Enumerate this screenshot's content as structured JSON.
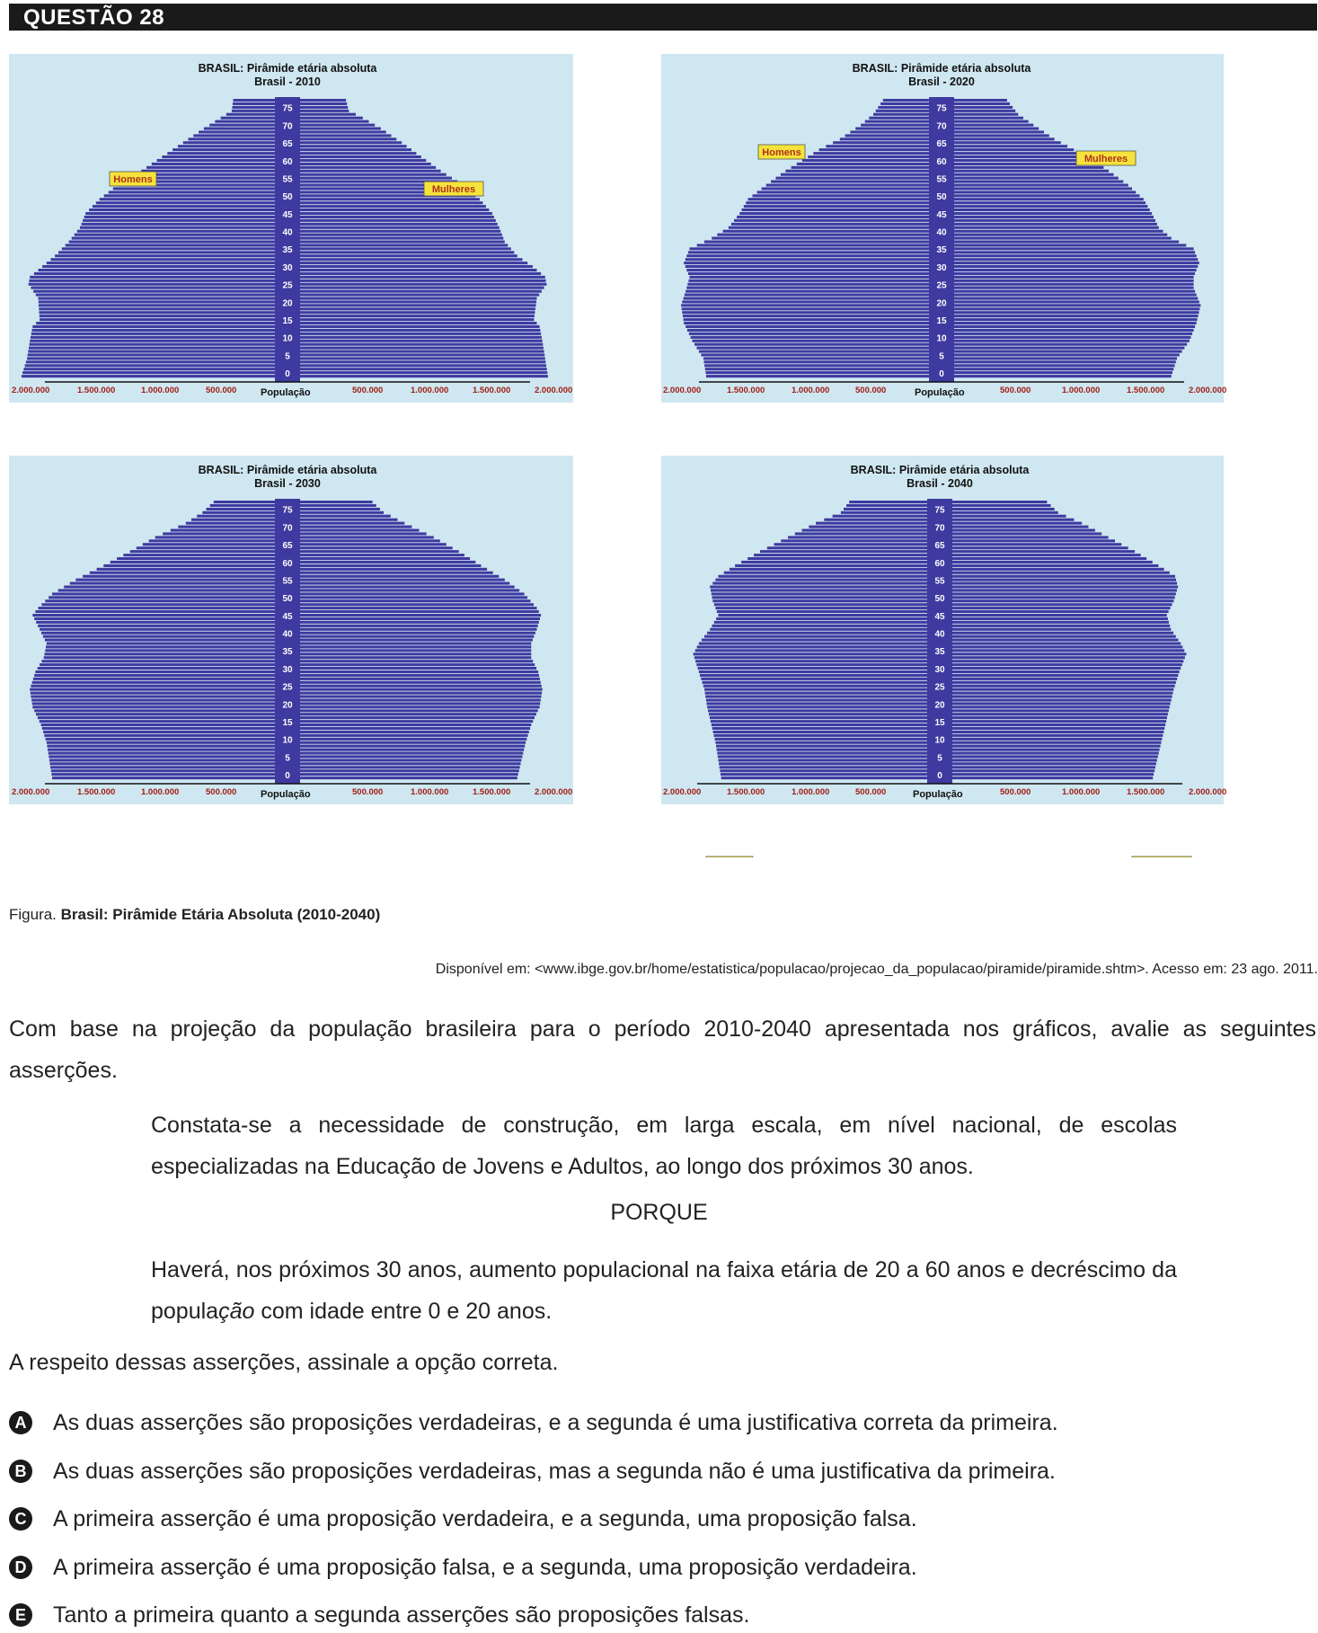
{
  "header": {
    "title": "QUESTÃO 28"
  },
  "colors": {
    "bg": "#cfe7f1",
    "bar": "#3f3aa0",
    "label_bg": "#f5e33b",
    "label_text": "#b0301e",
    "axis_text": "#a01e14"
  },
  "chart_data": [
    {
      "type": "population-pyramid",
      "title": "BRASIL: Pirâmide etária absoluta",
      "subtitle": "Brasil - 2010",
      "xlabel": "População",
      "left_label": "Homens",
      "right_label": "Mulheres",
      "x_ticks": [
        "2.000.000",
        "1.500.000",
        "1.000.000",
        "500.000",
        "500.000",
        "1.000.000",
        "1.500.000",
        "2.000.000"
      ],
      "age_ticks": [
        "0",
        "5",
        "10",
        "15",
        "20",
        "25",
        "30",
        "35",
        "40",
        "45",
        "50",
        "55",
        "60",
        "65",
        "70",
        "75"
      ],
      "xlim": [
        0,
        2000000
      ],
      "male_profile": [
        [
          0,
          1820000
        ],
        [
          5,
          1780000
        ],
        [
          10,
          1760000
        ],
        [
          14,
          1740000
        ],
        [
          16,
          1690000
        ],
        [
          22,
          1700000
        ],
        [
          26,
          1770000
        ],
        [
          28,
          1760000
        ],
        [
          31,
          1670000
        ],
        [
          34,
          1580000
        ],
        [
          38,
          1480000
        ],
        [
          42,
          1400000
        ],
        [
          46,
          1360000
        ],
        [
          50,
          1260000
        ],
        [
          54,
          1130000
        ],
        [
          58,
          960000
        ],
        [
          62,
          810000
        ],
        [
          66,
          660000
        ],
        [
          70,
          510000
        ],
        [
          73,
          390000
        ],
        [
          75,
          310000
        ],
        [
          78,
          300000
        ]
      ],
      "female_profile": [
        [
          0,
          1780000
        ],
        [
          5,
          1760000
        ],
        [
          10,
          1740000
        ],
        [
          14,
          1720000
        ],
        [
          16,
          1680000
        ],
        [
          22,
          1700000
        ],
        [
          26,
          1770000
        ],
        [
          28,
          1760000
        ],
        [
          31,
          1670000
        ],
        [
          34,
          1560000
        ],
        [
          38,
          1470000
        ],
        [
          42,
          1430000
        ],
        [
          46,
          1380000
        ],
        [
          50,
          1290000
        ],
        [
          54,
          1170000
        ],
        [
          58,
          1010000
        ],
        [
          62,
          870000
        ],
        [
          66,
          730000
        ],
        [
          70,
          580000
        ],
        [
          73,
          450000
        ],
        [
          75,
          350000
        ],
        [
          78,
          330000
        ]
      ]
    },
    {
      "type": "population-pyramid",
      "title": "BRASIL: Pirâmide etária absoluta",
      "subtitle": "Brasil - 2020",
      "xlabel": "População",
      "left_label": "Homens",
      "right_label": "Mulheres",
      "x_ticks": [
        "2.000.000",
        "1.500.000",
        "1.000.000",
        "500.000",
        "500.000",
        "1.000.000",
        "1.500.000",
        "2.000.000"
      ],
      "age_ticks": [
        "0",
        "5",
        "10",
        "15",
        "20",
        "25",
        "30",
        "35",
        "40",
        "45",
        "50",
        "55",
        "60",
        "65",
        "70",
        "75"
      ],
      "xlim": [
        0,
        2000000
      ],
      "male_profile": [
        [
          0,
          1600000
        ],
        [
          5,
          1620000
        ],
        [
          10,
          1700000
        ],
        [
          15,
          1760000
        ],
        [
          20,
          1780000
        ],
        [
          25,
          1740000
        ],
        [
          28,
          1720000
        ],
        [
          32,
          1760000
        ],
        [
          36,
          1720000
        ],
        [
          39,
          1560000
        ],
        [
          42,
          1440000
        ],
        [
          46,
          1360000
        ],
        [
          50,
          1300000
        ],
        [
          54,
          1170000
        ],
        [
          58,
          1030000
        ],
        [
          61,
          910000
        ],
        [
          64,
          790000
        ],
        [
          67,
          640000
        ],
        [
          71,
          490000
        ],
        [
          74,
          400000
        ],
        [
          78,
          330000
        ]
      ],
      "female_profile": [
        [
          0,
          1560000
        ],
        [
          5,
          1600000
        ],
        [
          10,
          1690000
        ],
        [
          15,
          1740000
        ],
        [
          20,
          1770000
        ],
        [
          25,
          1720000
        ],
        [
          28,
          1720000
        ],
        [
          32,
          1760000
        ],
        [
          36,
          1720000
        ],
        [
          39,
          1560000
        ],
        [
          42,
          1470000
        ],
        [
          46,
          1420000
        ],
        [
          50,
          1360000
        ],
        [
          54,
          1250000
        ],
        [
          58,
          1110000
        ],
        [
          61,
          1000000
        ],
        [
          64,
          860000
        ],
        [
          67,
          720000
        ],
        [
          71,
          570000
        ],
        [
          74,
          460000
        ],
        [
          78,
          380000
        ]
      ]
    },
    {
      "type": "population-pyramid",
      "title": "BRASIL: Pirâmide etária absoluta",
      "subtitle": "Brasil - 2030",
      "xlabel": "População",
      "left_label": "Homens",
      "right_label": "Mulheres",
      "x_ticks": [
        "2.000.000",
        "1.500.000",
        "1.000.000",
        "500.000",
        "500.000",
        "1.000.000",
        "1.500.000",
        "2.000.000"
      ],
      "age_ticks": [
        "0",
        "5",
        "10",
        "15",
        "20",
        "25",
        "30",
        "35",
        "40",
        "45",
        "50",
        "55",
        "60",
        "65",
        "70",
        "75"
      ],
      "xlim": [
        0,
        2000000
      ],
      "male_profile": [
        [
          0,
          1600000
        ],
        [
          5,
          1620000
        ],
        [
          10,
          1640000
        ],
        [
          15,
          1680000
        ],
        [
          20,
          1740000
        ],
        [
          25,
          1760000
        ],
        [
          30,
          1720000
        ],
        [
          34,
          1660000
        ],
        [
          38,
          1640000
        ],
        [
          42,
          1690000
        ],
        [
          46,
          1740000
        ],
        [
          48,
          1700000
        ],
        [
          52,
          1600000
        ],
        [
          56,
          1430000
        ],
        [
          60,
          1230000
        ],
        [
          64,
          1040000
        ],
        [
          68,
          860000
        ],
        [
          72,
          640000
        ],
        [
          75,
          520000
        ],
        [
          78,
          440000
        ]
      ],
      "female_profile": [
        [
          0,
          1560000
        ],
        [
          5,
          1590000
        ],
        [
          10,
          1620000
        ],
        [
          15,
          1660000
        ],
        [
          20,
          1720000
        ],
        [
          25,
          1740000
        ],
        [
          30,
          1710000
        ],
        [
          34,
          1660000
        ],
        [
          38,
          1660000
        ],
        [
          42,
          1700000
        ],
        [
          46,
          1730000
        ],
        [
          48,
          1700000
        ],
        [
          52,
          1610000
        ],
        [
          56,
          1470000
        ],
        [
          60,
          1300000
        ],
        [
          64,
          1140000
        ],
        [
          68,
          960000
        ],
        [
          72,
          750000
        ],
        [
          75,
          600000
        ],
        [
          78,
          520000
        ]
      ]
    },
    {
      "type": "population-pyramid",
      "title": "BRASIL: Pirâmide etária absoluta",
      "subtitle": "Brasil - 2040",
      "xlabel": "População",
      "left_label": "Homens",
      "right_label": "Mulheres",
      "x_ticks": [
        "2.000.000",
        "1.500.000",
        "1.000.000",
        "500.000",
        "500.000",
        "1.000.000",
        "1.500.000",
        "2.000.000"
      ],
      "age_ticks": [
        "0",
        "5",
        "10",
        "15",
        "20",
        "25",
        "30",
        "35",
        "40",
        "45",
        "50",
        "55",
        "60",
        "65",
        "70",
        "75"
      ],
      "xlim": [
        0,
        2000000
      ],
      "male_profile": [
        [
          0,
          1480000
        ],
        [
          5,
          1500000
        ],
        [
          10,
          1520000
        ],
        [
          15,
          1550000
        ],
        [
          20,
          1580000
        ],
        [
          25,
          1600000
        ],
        [
          30,
          1640000
        ],
        [
          35,
          1680000
        ],
        [
          38,
          1640000
        ],
        [
          42,
          1560000
        ],
        [
          46,
          1500000
        ],
        [
          50,
          1540000
        ],
        [
          54,
          1560000
        ],
        [
          57,
          1500000
        ],
        [
          60,
          1380000
        ],
        [
          64,
          1200000
        ],
        [
          68,
          1000000
        ],
        [
          72,
          800000
        ],
        [
          75,
          620000
        ],
        [
          78,
          560000
        ]
      ],
      "female_profile": [
        [
          0,
          1440000
        ],
        [
          5,
          1470000
        ],
        [
          10,
          1500000
        ],
        [
          15,
          1530000
        ],
        [
          20,
          1560000
        ],
        [
          25,
          1590000
        ],
        [
          30,
          1630000
        ],
        [
          35,
          1680000
        ],
        [
          38,
          1640000
        ],
        [
          42,
          1570000
        ],
        [
          46,
          1540000
        ],
        [
          50,
          1590000
        ],
        [
          54,
          1620000
        ],
        [
          57,
          1600000
        ],
        [
          60,
          1480000
        ],
        [
          64,
          1310000
        ],
        [
          68,
          1120000
        ],
        [
          72,
          930000
        ],
        [
          75,
          760000
        ],
        [
          78,
          680000
        ]
      ]
    }
  ],
  "figure": {
    "caption_prefix": "Figura.",
    "caption_title": "Brasil: Pirâmide Etária Absoluta (2010-2040)",
    "source": "Disponível em: <www.ibge.gov.br/home/estatistica/populacao/projecao_da_populacao/piramide/piramide.shtm>. Acesso em: 23 ago. 2011."
  },
  "question": {
    "intro": "Com base na projeção da população brasileira para o período 2010-2040 apresentada nos gráficos, avalie as seguintes asserções.",
    "assertion1": "Constata-se a necessidade de construção, em larga escala, em nível nacional, de escolas especializadas na Educação de Jovens e Adultos, ao longo dos próximos 30 anos.",
    "porque": "PORQUE",
    "assertion2_pre": "Haverá, nos próximos 30 anos, aumento populacional na faixa etária de 20 a 60 anos e decréscimo da popula",
    "assertion2_ital": "ção",
    "assertion2_post": " com idade entre 0 e 20 anos.",
    "instruction": "A respeito dessas asserções, assinale a opção correta.",
    "options": [
      {
        "letter": "A",
        "text": "As duas asserções são proposições verdadeiras, e a segunda é uma justificativa correta da primeira."
      },
      {
        "letter": "B",
        "text": "As duas asserções são proposições verdadeiras, mas a segunda não é uma justificativa da primeira."
      },
      {
        "letter": "C",
        "text": "A primeira asserção é uma proposição verdadeira, e a segunda, uma proposição falsa."
      },
      {
        "letter": "D",
        "text": "A primeira asserção é uma proposição falsa, e a segunda, uma proposição verdadeira."
      },
      {
        "letter": "E",
        "text": "Tanto a primeira quanto a segunda asserções são proposições falsas."
      }
    ]
  }
}
